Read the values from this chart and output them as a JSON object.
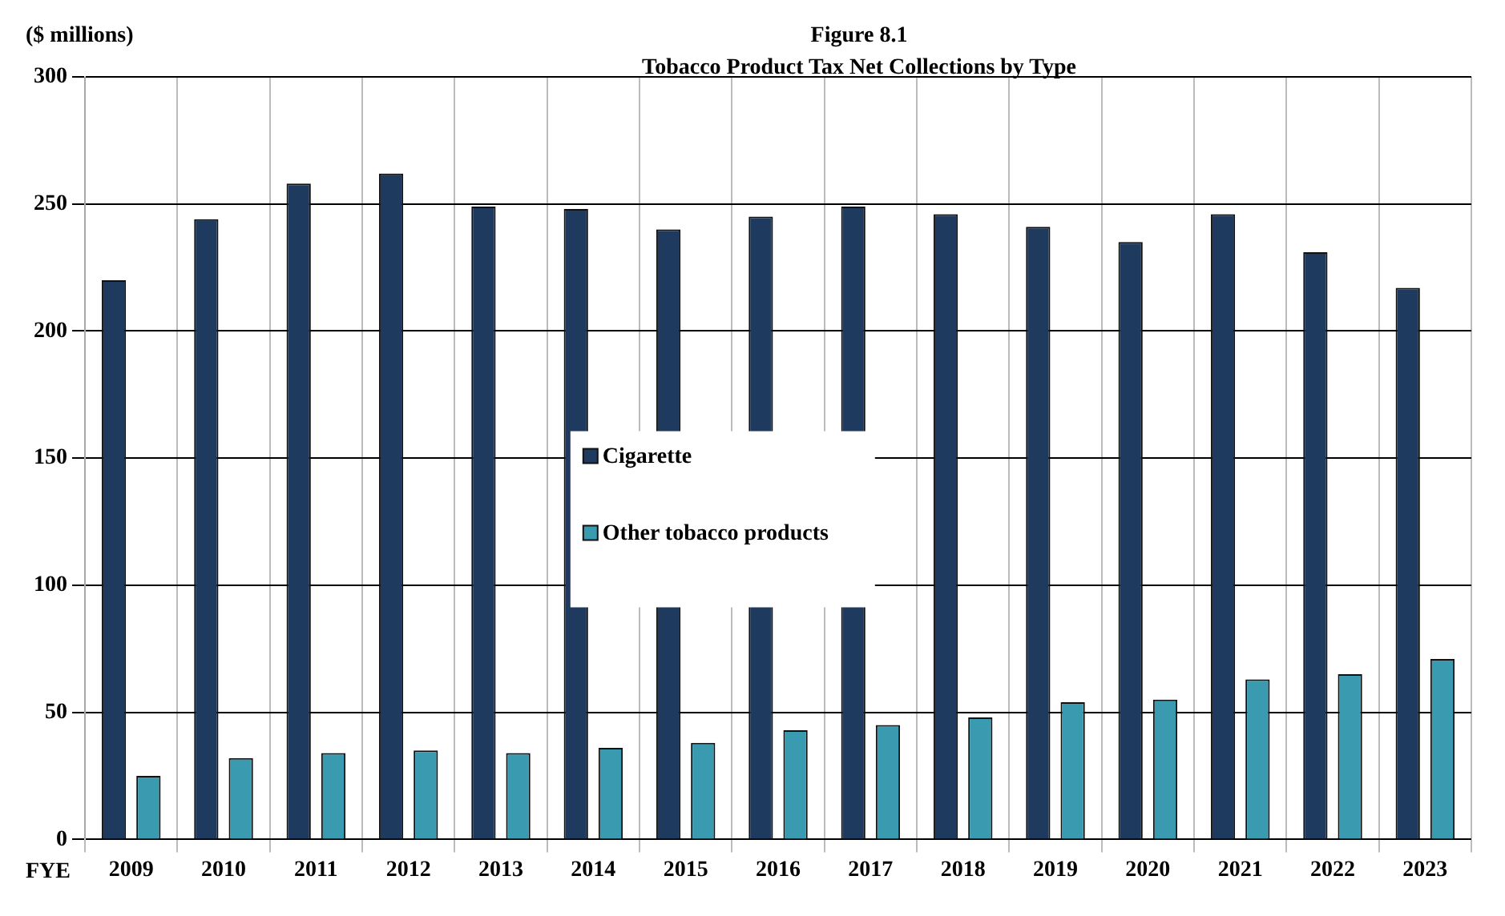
{
  "chart_data": {
    "type": "bar",
    "title": "Figure 8.1",
    "subtitle": "Tobacco Product Tax Net Collections by Type",
    "ylabel": "($ millions)",
    "xlabel": "FYE",
    "categories": [
      "2009",
      "2010",
      "2011",
      "2012",
      "2013",
      "2014",
      "2015",
      "2016",
      "2017",
      "2018",
      "2019",
      "2020",
      "2021",
      "2022",
      "2023"
    ],
    "series": [
      {
        "name": "Cigarette",
        "color": "#1f3a5f",
        "values": [
          220,
          244,
          258,
          262,
          249,
          248,
          240,
          245,
          249,
          246,
          241,
          235,
          246,
          231,
          217
        ]
      },
      {
        "name": "Other tobacco products",
        "color": "#3a9ab0",
        "values": [
          25,
          32,
          34,
          35,
          34,
          36,
          38,
          43,
          45,
          48,
          54,
          55,
          63,
          65,
          71
        ]
      }
    ],
    "ylim": [
      0,
      300
    ],
    "yticks": [
      0,
      50,
      100,
      150,
      200,
      250,
      300
    ],
    "grid": true,
    "legend": "center"
  }
}
